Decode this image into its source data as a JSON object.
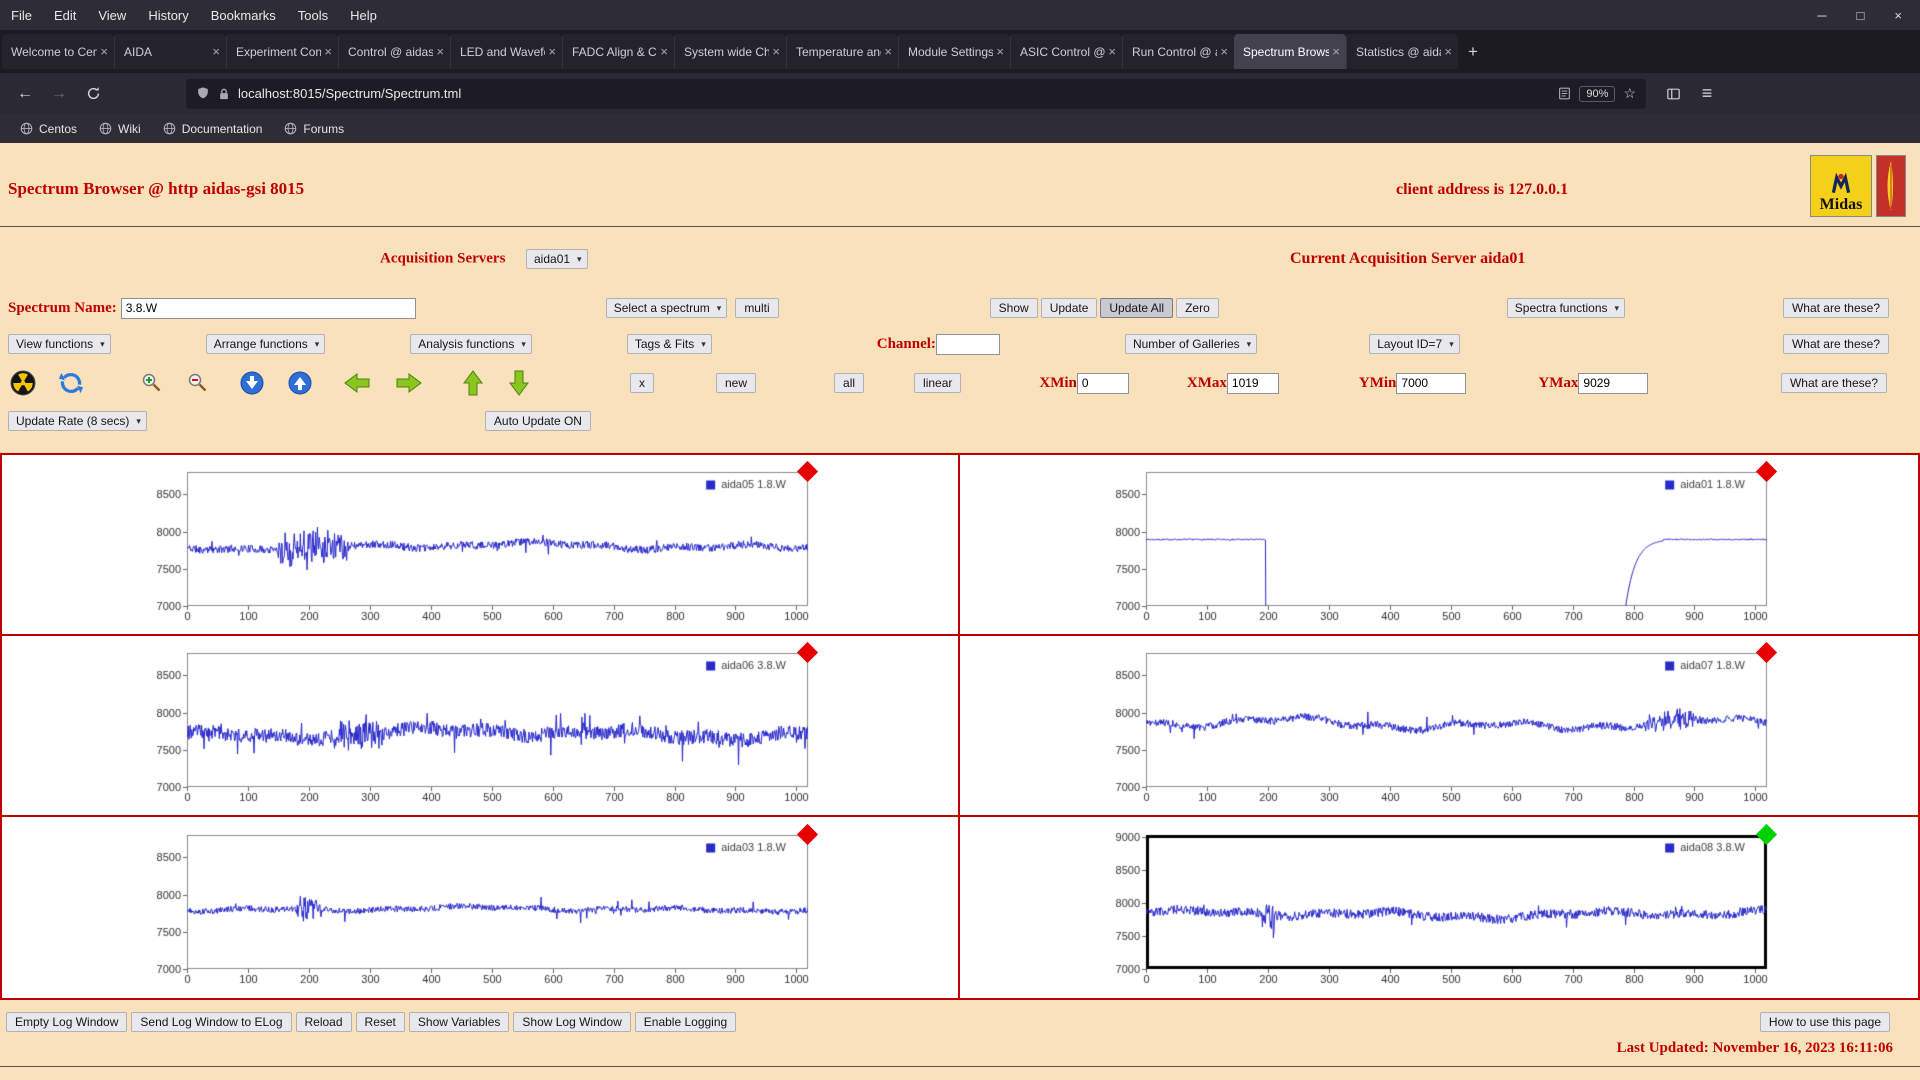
{
  "browser": {
    "menus": [
      "File",
      "Edit",
      "View",
      "History",
      "Bookmarks",
      "Tools",
      "Help"
    ],
    "window_controls": [
      {
        "name": "minimize",
        "glyph": "─"
      },
      {
        "name": "maximize",
        "glyph": "□"
      },
      {
        "name": "close",
        "glyph": "×"
      }
    ],
    "tabs": [
      {
        "label": "Welcome to Cen",
        "active": false
      },
      {
        "label": "AIDA",
        "active": false
      },
      {
        "label": "Experiment Cont",
        "active": false
      },
      {
        "label": "Control @ aidas",
        "active": false
      },
      {
        "label": "LED and Wavefo",
        "active": false
      },
      {
        "label": "FADC Align & Co",
        "active": false
      },
      {
        "label": "System wide Che",
        "active": false
      },
      {
        "label": "Temperature and",
        "active": false
      },
      {
        "label": "Module Settings",
        "active": false
      },
      {
        "label": "ASIC Control @",
        "active": false
      },
      {
        "label": "Run Control @ a",
        "active": false
      },
      {
        "label": "Spectrum Brows",
        "active": true
      },
      {
        "label": "Statistics @ aida",
        "active": false
      }
    ],
    "new_tab_label": "+",
    "url": "localhost:8015/Spectrum/Spectrum.tml",
    "zoom": "90%",
    "bookmarks": [
      "Centos",
      "Wiki",
      "Documentation",
      "Forums"
    ],
    "icons": {
      "back": "←",
      "forward": "→",
      "star": "☆",
      "menu": "≡",
      "select_arrow": "▾",
      "close": "×"
    }
  },
  "page": {
    "title": "Spectrum Browser @ http aidas-gsi 8015",
    "client_address": "client address is 127.0.0.1",
    "acquisition_servers_label": "Acquisition Servers",
    "acquisition_server_value": "aida01",
    "current_server": "Current Acquisition Server aida01",
    "spectrum_name_label": "Spectrum Name:",
    "spectrum_name_value": "3.8.W",
    "select_spectrum": "Select a spectrum",
    "multi": "multi",
    "show": "Show",
    "update": "Update",
    "update_all": "Update All",
    "zero": "Zero",
    "spectra_functions": "Spectra functions",
    "what_are_these": "What are these?",
    "view_functions": "View functions",
    "arrange_functions": "Arrange functions",
    "analysis_functions": "Analysis functions",
    "tags_fits": "Tags & Fits",
    "channel_label": "Channel:",
    "channel_value": "",
    "num_galleries": "Number of Galleries",
    "layout_id": "Layout ID=7",
    "x_button": "x",
    "new_button": "new",
    "all_button": "all",
    "linear_button": "linear",
    "xmin_label": "XMin",
    "xmin_value": "0",
    "xmax_label": "XMax",
    "xmax_value": "1019",
    "ymin_label": "YMin",
    "ymin_value": "7000",
    "ymax_label": "YMax",
    "ymax_value": "9029",
    "update_rate": "Update Rate (8 secs)",
    "auto_update": "Auto Update ON",
    "footer_buttons": [
      "Empty Log Window",
      "Send Log Window to ELog",
      "Reload",
      "Reset",
      "Show Variables",
      "Show Log Window",
      "Enable Logging"
    ],
    "how_to": "How to use this page",
    "last_updated": "Last Updated: November 16, 2023 16:11:06",
    "logos": {
      "midas_text": "Midas"
    }
  },
  "chart_data": [
    {
      "type": "line",
      "name": "aida05",
      "legend": "aida05 1.8.W",
      "marker_color": "#e60000",
      "selected": false,
      "xlim": [
        0,
        1019
      ],
      "ylim": [
        7000,
        8800
      ],
      "x_ticks": [
        0,
        100,
        200,
        300,
        400,
        500,
        600,
        700,
        800,
        900,
        1000
      ],
      "y_ticks": [
        7000,
        7500,
        8000,
        8500
      ],
      "xlabel": "",
      "ylabel": "",
      "grid": false,
      "line_color": "#2929cc",
      "gen": {
        "kind": "noise",
        "seed": 11,
        "base": 7805,
        "slow": 45,
        "fast": 52,
        "spikeProb": 0.02,
        "spikeAmp": 150,
        "bursts": [
          {
            "from": 150,
            "to": 265,
            "amp": 210
          }
        ]
      }
    },
    {
      "type": "line",
      "name": "aida01",
      "legend": "aida01 1.8.W",
      "marker_color": "#e60000",
      "selected": false,
      "xlim": [
        0,
        1019
      ],
      "ylim": [
        7000,
        8800
      ],
      "x_ticks": [
        0,
        100,
        200,
        300,
        400,
        500,
        600,
        700,
        800,
        900,
        1000
      ],
      "y_ticks": [
        7000,
        7500,
        8000,
        8500
      ],
      "xlabel": "",
      "ylabel": "",
      "grid": false,
      "line_color": "#2929cc",
      "gen": {
        "kind": "dropout",
        "seed": 7,
        "base": 7893,
        "noise": 9,
        "dropStart": 197,
        "low": 6300,
        "riseStart": 778,
        "riseTau": 16
      }
    },
    {
      "type": "line",
      "name": "aida06",
      "legend": "aida06 3.8.W",
      "marker_color": "#e60000",
      "selected": false,
      "xlim": [
        0,
        1019
      ],
      "ylim": [
        7000,
        8800
      ],
      "x_ticks": [
        0,
        100,
        200,
        300,
        400,
        500,
        600,
        700,
        800,
        900,
        1000
      ],
      "y_ticks": [
        7000,
        7500,
        8000,
        8500
      ],
      "xlabel": "",
      "ylabel": "",
      "grid": false,
      "line_color": "#2929cc",
      "gen": {
        "kind": "noise",
        "seed": 23,
        "base": 7720,
        "slow": 70,
        "fast": 95,
        "spikeProb": 0.03,
        "spikeAmp": 260,
        "bursts": [
          {
            "from": 240,
            "to": 320,
            "amp": 180
          }
        ]
      }
    },
    {
      "type": "line",
      "name": "aida07",
      "legend": "aida07 1.8.W",
      "marker_color": "#e60000",
      "selected": false,
      "xlim": [
        0,
        1019
      ],
      "ylim": [
        7000,
        8800
      ],
      "x_ticks": [
        0,
        100,
        200,
        300,
        400,
        500,
        600,
        700,
        800,
        900,
        1000
      ],
      "y_ticks": [
        7000,
        7500,
        8000,
        8500
      ],
      "xlabel": "",
      "ylabel": "",
      "grid": false,
      "line_color": "#2929cc",
      "gen": {
        "kind": "noise",
        "seed": 37,
        "base": 7845,
        "slow": 75,
        "fast": 50,
        "spikeProb": 0.015,
        "spikeAmp": 160,
        "bursts": [
          {
            "from": 820,
            "to": 900,
            "amp": 120
          }
        ]
      }
    },
    {
      "type": "line",
      "name": "aida03",
      "legend": "aida03 1.8.W",
      "marker_color": "#e60000",
      "selected": false,
      "xlim": [
        0,
        1019
      ],
      "ylim": [
        7000,
        8800
      ],
      "x_ticks": [
        0,
        100,
        200,
        300,
        400,
        500,
        600,
        700,
        800,
        900,
        1000
      ],
      "y_ticks": [
        7000,
        7500,
        8000,
        8500
      ],
      "xlabel": "",
      "ylabel": "",
      "grid": false,
      "line_color": "#2929cc",
      "gen": {
        "kind": "noise",
        "seed": 41,
        "base": 7805,
        "slow": 28,
        "fast": 42,
        "spikeProb": 0.012,
        "spikeAmp": 190,
        "bursts": [
          {
            "from": 180,
            "to": 220,
            "amp": 160
          }
        ]
      }
    },
    {
      "type": "line",
      "name": "aida08",
      "legend": "aida08 3.8.W",
      "marker_color": "#00cf00",
      "selected": true,
      "xlim": [
        0,
        1019
      ],
      "ylim": [
        7000,
        9029
      ],
      "x_ticks": [
        0,
        100,
        200,
        300,
        400,
        500,
        600,
        700,
        800,
        900,
        1000
      ],
      "y_ticks": [
        7000,
        7500,
        8000,
        8500,
        9000
      ],
      "xlabel": "",
      "ylabel": "",
      "grid": false,
      "line_color": "#2929cc",
      "gen": {
        "kind": "noise",
        "seed": 53,
        "base": 7830,
        "slow": 55,
        "fast": 70,
        "spikeProb": 0.02,
        "spikeAmp": 180,
        "bursts": [
          {
            "from": 190,
            "to": 210,
            "amp": 320
          }
        ]
      }
    }
  ]
}
